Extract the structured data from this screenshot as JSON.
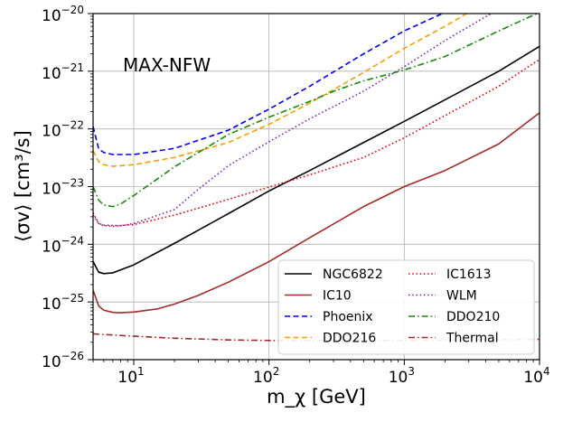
{
  "chart_data": {
    "type": "line",
    "title": "",
    "annotation": "MAX-NFW",
    "xlabel": "m_χ [GeV]",
    "ylabel": "⟨σv⟩ [cm³/s]",
    "xscale": "log",
    "yscale": "log",
    "xlim": [
      5,
      10000
    ],
    "ylim": [
      1e-26,
      1e-20
    ],
    "grid": true,
    "legend_position": "bottom-right",
    "legend_columns": 2,
    "x_ticks": [
      {
        "value": 10,
        "base": "10",
        "exp": "1"
      },
      {
        "value": 100,
        "base": "10",
        "exp": "2"
      },
      {
        "value": 1000,
        "base": "10",
        "exp": "3"
      },
      {
        "value": 10000,
        "base": "10",
        "exp": "4"
      }
    ],
    "y_ticks": [
      {
        "value": 1e-26,
        "base": "10",
        "exp": "−26"
      },
      {
        "value": 1e-25,
        "base": "10",
        "exp": "−25"
      },
      {
        "value": 1e-24,
        "base": "10",
        "exp": "−24"
      },
      {
        "value": 1e-23,
        "base": "10",
        "exp": "−23"
      },
      {
        "value": 1e-22,
        "base": "10",
        "exp": "−22"
      },
      {
        "value": 1e-21,
        "base": "10",
        "exp": "−21"
      },
      {
        "value": 1e-20,
        "base": "10",
        "exp": "−20"
      }
    ],
    "series": [
      {
        "name": "NGC6822",
        "color": "#000000",
        "dash": "solid",
        "points": [
          [
            5,
            5e-25
          ],
          [
            5.5,
            3.3e-25
          ],
          [
            6,
            3.1e-25
          ],
          [
            7,
            3.2e-25
          ],
          [
            8,
            3.6e-25
          ],
          [
            10,
            4.4e-25
          ],
          [
            20,
            1.04e-24
          ],
          [
            50,
            3.4e-24
          ],
          [
            100,
            8.4e-24
          ],
          [
            200,
            1.9e-23
          ],
          [
            500,
            5.8e-23
          ],
          [
            1000,
            1.35e-22
          ],
          [
            2000,
            3.2e-22
          ],
          [
            5000,
            1e-21
          ],
          [
            10000,
            2.7e-21
          ]
        ]
      },
      {
        "name": "IC10",
        "color": "#a52a2a",
        "dash": "solid",
        "points": [
          [
            5,
            1.6e-25
          ],
          [
            5.5,
            8.5e-26
          ],
          [
            6,
            7.2e-26
          ],
          [
            7,
            6.6e-26
          ],
          [
            8,
            6.5e-26
          ],
          [
            10,
            6.7e-26
          ],
          [
            15,
            7.6e-26
          ],
          [
            20,
            9.2e-26
          ],
          [
            30,
            1.3e-25
          ],
          [
            50,
            2.2e-25
          ],
          [
            100,
            5e-25
          ],
          [
            200,
            1.3e-24
          ],
          [
            500,
            4.5e-24
          ],
          [
            1000,
            1e-23
          ],
          [
            2000,
            1.9e-23
          ],
          [
            5000,
            5.5e-23
          ],
          [
            10000,
            1.9e-22
          ]
        ]
      },
      {
        "name": "Phoenix",
        "color": "#0000ee",
        "dash": "dashed",
        "points": [
          [
            5,
            1.1e-22
          ],
          [
            5.5,
            4.5e-23
          ],
          [
            6,
            3.9e-23
          ],
          [
            7,
            3.6e-23
          ],
          [
            10,
            3.6e-23
          ],
          [
            20,
            4.6e-23
          ],
          [
            50,
            9.5e-23
          ],
          [
            100,
            2.2e-22
          ],
          [
            200,
            5.5e-22
          ],
          [
            500,
            2e-21
          ],
          [
            1000,
            5e-21
          ],
          [
            2000,
            1.05e-20
          ]
        ]
      },
      {
        "name": "DDO216",
        "color": "#f5a000",
        "dash": "dashed",
        "points": [
          [
            5,
            4.2e-23
          ],
          [
            5.5,
            2.7e-23
          ],
          [
            6,
            2.4e-23
          ],
          [
            7,
            2.25e-23
          ],
          [
            10,
            2.4e-23
          ],
          [
            20,
            3.2e-23
          ],
          [
            50,
            5.8e-23
          ],
          [
            100,
            1.2e-22
          ],
          [
            200,
            2.8e-22
          ],
          [
            500,
            9.5e-22
          ],
          [
            1000,
            2.5e-21
          ],
          [
            2000,
            6e-21
          ],
          [
            3000,
            1.05e-20
          ]
        ]
      },
      {
        "name": "IC1613",
        "color": "#e8000b",
        "dash": "dotted",
        "points": [
          [
            5,
            3.5e-24
          ],
          [
            5.5,
            2.3e-24
          ],
          [
            6,
            2.1e-24
          ],
          [
            7,
            2.05e-24
          ],
          [
            10,
            2.2e-24
          ],
          [
            20,
            3.2e-24
          ],
          [
            50,
            6e-24
          ],
          [
            100,
            9.8e-24
          ],
          [
            200,
            1.6e-23
          ],
          [
            500,
            3.2e-23
          ],
          [
            1000,
            7e-23
          ],
          [
            2000,
            1.7e-22
          ],
          [
            5000,
            5.5e-22
          ],
          [
            10000,
            1.6e-21
          ]
        ]
      },
      {
        "name": "WLM",
        "color": "#7b2cbf",
        "dash": "dotted",
        "points": [
          [
            5,
            3.2e-24
          ],
          [
            5.5,
            2.3e-24
          ],
          [
            6,
            2.15e-24
          ],
          [
            8,
            2.1e-24
          ],
          [
            10,
            2.3e-24
          ],
          [
            20,
            4e-24
          ],
          [
            30,
            9e-24
          ],
          [
            50,
            2.3e-23
          ],
          [
            100,
            6e-23
          ],
          [
            200,
            1.5e-22
          ],
          [
            500,
            4.5e-22
          ],
          [
            1000,
            1.2e-21
          ],
          [
            2000,
            3.4e-21
          ],
          [
            5000,
            1.2e-20
          ]
        ]
      },
      {
        "name": "DDO210",
        "color": "#138a07",
        "dash": "dashdot",
        "points": [
          [
            5,
            1e-23
          ],
          [
            5.5,
            5.8e-24
          ],
          [
            6,
            4.8e-24
          ],
          [
            7,
            4.5e-24
          ],
          [
            8,
            5e-24
          ],
          [
            10,
            7e-24
          ],
          [
            20,
            2.2e-23
          ],
          [
            50,
            8e-23
          ],
          [
            100,
            1.6e-22
          ],
          [
            200,
            3e-22
          ],
          [
            300,
            4.5e-22
          ],
          [
            500,
            6.8e-22
          ],
          [
            1000,
            1.05e-21
          ],
          [
            2000,
            1.8e-21
          ],
          [
            5000,
            5e-21
          ],
          [
            10000,
            1.05e-20
          ]
        ]
      },
      {
        "name": "Thermal",
        "color": "#a52a2a",
        "dash": "dashdot",
        "points": [
          [
            5,
            2.8e-26
          ],
          [
            10,
            2.55e-26
          ],
          [
            20,
            2.35e-26
          ],
          [
            50,
            2.2e-26
          ],
          [
            100,
            2.15e-26
          ],
          [
            1000,
            2.15e-26
          ],
          [
            10000,
            2.25e-26
          ]
        ]
      }
    ]
  }
}
